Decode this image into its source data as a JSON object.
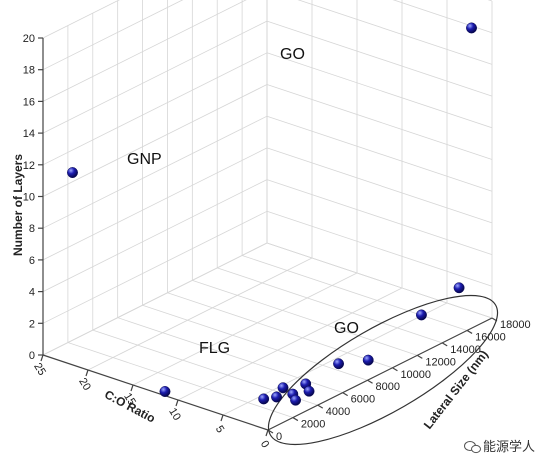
{
  "chart_data": {
    "type": "scatter",
    "projection": "3d",
    "title": "",
    "xlabel": "C:O Ratio",
    "ylabel": "Lateral Size (nm)",
    "zlabel": "Number of Layers",
    "xlim": [
      0,
      25
    ],
    "ylim": [
      0,
      18000
    ],
    "zlim": [
      0,
      20
    ],
    "x_ticks": [
      0,
      5,
      10,
      15,
      20,
      25
    ],
    "y_ticks": [
      0,
      2000,
      4000,
      6000,
      8000,
      10000,
      12000,
      14000,
      16000,
      18000
    ],
    "z_ticks": [
      0,
      2,
      4,
      6,
      8,
      10,
      12,
      14,
      16,
      18,
      20
    ],
    "grid": true,
    "marker_color": "#1c1cb0",
    "points": [
      {
        "x": 22,
        "y": 200,
        "z": 12
      },
      {
        "x": 2,
        "y": 17800,
        "z": 18
      },
      {
        "x": 12,
        "y": 400,
        "z": 0
      },
      {
        "x": 2,
        "y": 16800,
        "z": 2
      },
      {
        "x": 3,
        "y": 14500,
        "z": 1
      },
      {
        "x": 2,
        "y": 9500,
        "z": 0.3
      },
      {
        "x": 3.5,
        "y": 8200,
        "z": 0.3
      },
      {
        "x": 3,
        "y": 5200,
        "z": 0.3
      },
      {
        "x": 1.8,
        "y": 4600,
        "z": 0.3
      },
      {
        "x": 4,
        "y": 4100,
        "z": 0.3
      },
      {
        "x": 2.5,
        "y": 3800,
        "z": 0.3
      },
      {
        "x": 1.5,
        "y": 3300,
        "z": 0.3
      },
      {
        "x": 3.2,
        "y": 3000,
        "z": 0.3
      },
      {
        "x": 3.8,
        "y": 2400,
        "z": 0.3
      }
    ],
    "annotations": [
      {
        "text": "GO",
        "x": 2,
        "y": 17800,
        "z": 18
      },
      {
        "text": "GNP",
        "x": 22,
        "y": 200,
        "z": 12
      },
      {
        "text": "FLG",
        "x": 12,
        "y": 400,
        "z": 0
      },
      {
        "text": "GO",
        "x": 3,
        "y": 9500,
        "z": 0.3
      }
    ],
    "ellipse_note": "encloses the lower GO cluster"
  },
  "watermark": {
    "text": "能源学人",
    "icon": "wechat-icon"
  }
}
